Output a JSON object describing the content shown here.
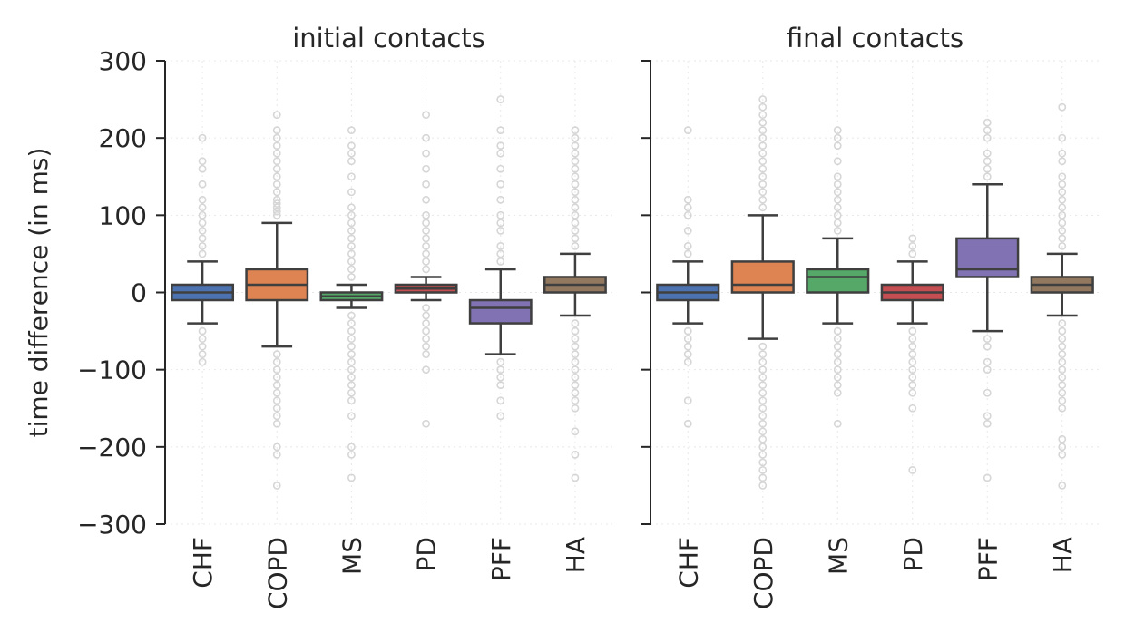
{
  "chart_data": {
    "type": "box",
    "ylabel": "time difference (in ms)",
    "ylim": [
      -300,
      300
    ],
    "yticks": [
      -300,
      -200,
      -100,
      0,
      100,
      200,
      300
    ],
    "ytick_labels": [
      "−300",
      "−200",
      "−100",
      "0",
      "100",
      "200",
      "300"
    ],
    "grid": true,
    "categories": [
      "CHF",
      "COPD",
      "MS",
      "PD",
      "PFF",
      "HA"
    ],
    "colors": [
      "#4c72b0",
      "#dd8452",
      "#55a868",
      "#c44e52",
      "#8172b3",
      "#937860"
    ],
    "panels": [
      {
        "title": "initial contacts",
        "boxes": [
          {
            "category": "CHF",
            "whislo": -40,
            "q1": -10,
            "med": 0,
            "q3": 10,
            "whishi": 40,
            "fliers": [
              -90,
              -80,
              -70,
              -60,
              -50,
              50,
              60,
              70,
              80,
              90,
              100,
              110,
              120,
              140,
              160,
              170,
              200
            ]
          },
          {
            "category": "COPD",
            "whislo": -70,
            "q1": -10,
            "med": 10,
            "q3": 30,
            "whishi": 90,
            "fliers": [
              -250,
              -210,
              -200,
              -170,
              -160,
              -150,
              -140,
              -130,
              -120,
              -110,
              -100,
              -90,
              -80,
              100,
              105,
              110,
              115,
              120,
              130,
              140,
              150,
              160,
              170,
              180,
              190,
              200,
              210,
              230
            ]
          },
          {
            "category": "MS",
            "whislo": -20,
            "q1": -10,
            "med": -5,
            "q3": 0,
            "whishi": 10,
            "fliers": [
              -240,
              -210,
              -200,
              -160,
              -140,
              -130,
              -120,
              -110,
              -100,
              -90,
              -80,
              -70,
              -60,
              -50,
              -40,
              -30,
              20,
              30,
              40,
              50,
              60,
              70,
              80,
              90,
              100,
              110,
              130,
              150,
              170,
              180,
              190,
              210
            ]
          },
          {
            "category": "PD",
            "whislo": -10,
            "q1": 0,
            "med": 5,
            "q3": 10,
            "whishi": 20,
            "fliers": [
              -170,
              -100,
              -80,
              -70,
              -60,
              -50,
              -40,
              -30,
              -20,
              30,
              40,
              50,
              60,
              70,
              80,
              90,
              100,
              120,
              140,
              160,
              180,
              200,
              230
            ]
          },
          {
            "category": "PFF",
            "whislo": -80,
            "q1": -40,
            "med": -20,
            "q3": -10,
            "whishi": 30,
            "fliers": [
              -160,
              -140,
              -120,
              -110,
              -100,
              -90,
              40,
              50,
              60,
              80,
              90,
              100,
              120,
              140,
              160,
              180,
              190,
              210,
              250
            ]
          },
          {
            "category": "HA",
            "whislo": -30,
            "q1": 0,
            "med": 10,
            "q3": 20,
            "whishi": 50,
            "fliers": [
              -240,
              -210,
              -180,
              -150,
              -140,
              -130,
              -120,
              -110,
              -100,
              -90,
              -80,
              -70,
              -60,
              -50,
              -40,
              60,
              70,
              80,
              90,
              100,
              110,
              120,
              130,
              140,
              150,
              160,
              170,
              180,
              190,
              200,
              210
            ]
          }
        ]
      },
      {
        "title": "final contacts",
        "boxes": [
          {
            "category": "CHF",
            "whislo": -40,
            "q1": -10,
            "med": 0,
            "q3": 10,
            "whishi": 40,
            "fliers": [
              -170,
              -140,
              -90,
              -80,
              -70,
              -60,
              -50,
              50,
              60,
              80,
              100,
              110,
              120,
              210
            ]
          },
          {
            "category": "COPD",
            "whislo": -60,
            "q1": 0,
            "med": 10,
            "q3": 40,
            "whishi": 100,
            "fliers": [
              -250,
              -240,
              -230,
              -220,
              -210,
              -200,
              -190,
              -180,
              -170,
              -160,
              -150,
              -140,
              -130,
              -120,
              -110,
              -100,
              -90,
              -80,
              -70,
              110,
              120,
              130,
              140,
              150,
              160,
              170,
              180,
              190,
              200,
              210,
              220,
              230,
              240,
              250
            ]
          },
          {
            "category": "MS",
            "whislo": -40,
            "q1": 0,
            "med": 20,
            "q3": 30,
            "whishi": 70,
            "fliers": [
              -170,
              -130,
              -120,
              -110,
              -100,
              -90,
              -80,
              -70,
              -60,
              -50,
              80,
              90,
              100,
              110,
              120,
              130,
              140,
              150,
              170,
              190,
              200,
              210
            ]
          },
          {
            "category": "PD",
            "whislo": -40,
            "q1": -10,
            "med": 0,
            "q3": 10,
            "whishi": 40,
            "fliers": [
              -230,
              -150,
              -130,
              -120,
              -110,
              -100,
              -90,
              -80,
              -70,
              -60,
              -50,
              50,
              60,
              70
            ]
          },
          {
            "category": "PFF",
            "whislo": -50,
            "q1": 20,
            "med": 30,
            "q3": 70,
            "whishi": 140,
            "fliers": [
              -240,
              -170,
              -160,
              -130,
              -100,
              -90,
              -70,
              -60,
              150,
              160,
              170,
              180,
              200,
              210,
              220
            ]
          },
          {
            "category": "HA",
            "whislo": -30,
            "q1": 0,
            "med": 10,
            "q3": 20,
            "whishi": 50,
            "fliers": [
              -250,
              -210,
              -200,
              -190,
              -150,
              -140,
              -130,
              -120,
              -110,
              -100,
              -90,
              -80,
              -70,
              -60,
              -50,
              -40,
              60,
              70,
              80,
              90,
              100,
              110,
              120,
              130,
              140,
              150,
              170,
              180,
              200,
              240
            ]
          }
        ]
      }
    ]
  }
}
